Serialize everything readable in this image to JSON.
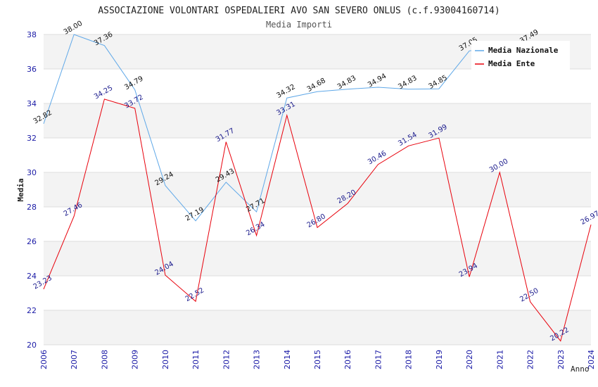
{
  "chart_data": {
    "type": "line",
    "title": "ASSOCIAZIONE VOLONTARI OSPEDALIERI AVO SAN SEVERO ONLUS (c.f.93004160714)",
    "subtitle": "Media Importi",
    "xlabel": "Anno",
    "ylabel": "Media",
    "ylim": [
      20,
      38
    ],
    "yticks": [
      20,
      22,
      24,
      26,
      28,
      30,
      32,
      34,
      36,
      38
    ],
    "x": [
      2006,
      2007,
      2008,
      2009,
      2010,
      2011,
      2012,
      2013,
      2014,
      2015,
      2016,
      2017,
      2018,
      2019,
      2020,
      2021,
      2022,
      2023,
      2024
    ],
    "grid": true,
    "legend_position": "top-right",
    "series": [
      {
        "name": "Media Nazionale",
        "color": "#5fa8e8",
        "values": [
          32.82,
          38.0,
          37.36,
          34.79,
          29.24,
          27.19,
          29.43,
          27.71,
          34.32,
          34.68,
          34.83,
          34.94,
          34.83,
          34.85,
          37.05,
          null,
          37.49,
          null,
          null
        ],
        "labels": [
          "32.82",
          "38.00",
          "37.36",
          "34.79",
          "29.24",
          "27.19",
          "29.43",
          "27.71",
          "34.32",
          "34.68",
          "34.83",
          "34.94",
          "34.83",
          "34.85",
          "37.05",
          null,
          "37.49",
          null,
          null
        ]
      },
      {
        "name": "Media Ente",
        "color": "#e8000b",
        "values": [
          23.23,
          27.46,
          34.25,
          33.72,
          24.04,
          22.52,
          31.77,
          26.34,
          33.31,
          26.8,
          28.2,
          30.46,
          31.54,
          31.99,
          23.94,
          30.0,
          22.5,
          20.22,
          26.97
        ],
        "labels": [
          "23.23",
          "27.46",
          "34.25",
          "33.72",
          "24.04",
          "22.52",
          "31.77",
          "26.34",
          "33.31",
          "26.80",
          "28.20",
          "30.46",
          "31.54",
          "31.99",
          "23.94",
          "30.00",
          "22.50",
          "20.22",
          "26.97"
        ]
      }
    ]
  }
}
